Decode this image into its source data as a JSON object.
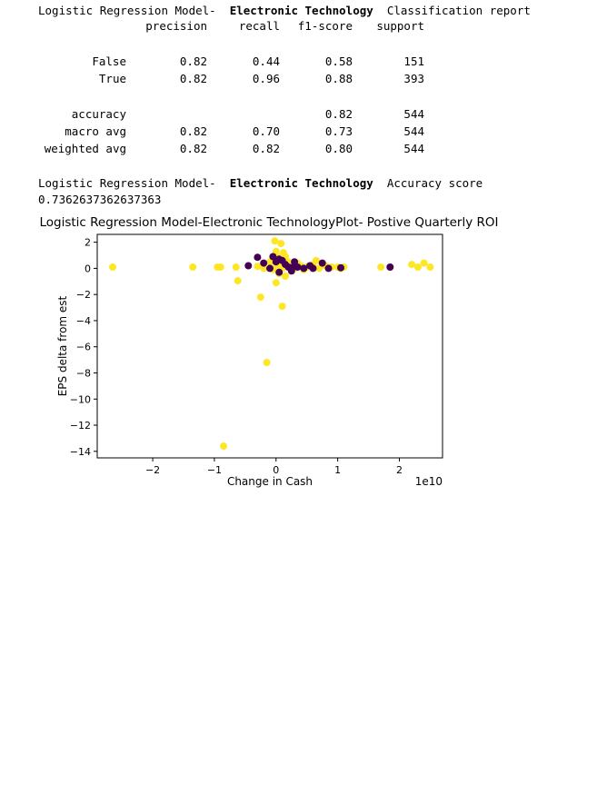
{
  "report": {
    "title_prefix": "Logistic Regression Model-",
    "title_bold": "Electronic Technology",
    "title_suffix": "Classification report",
    "headers": [
      "precision",
      "recall",
      "f1-score",
      "support"
    ],
    "rows": [
      {
        "label": "False",
        "precision": "0.82",
        "recall": "0.44",
        "f1": "0.58",
        "support": "151"
      },
      {
        "label": "True",
        "precision": "0.82",
        "recall": "0.96",
        "f1": "0.88",
        "support": "393"
      }
    ],
    "summary": [
      {
        "label": "accuracy",
        "precision": "",
        "recall": "",
        "f1": "0.82",
        "support": "544"
      },
      {
        "label": "macro avg",
        "precision": "0.82",
        "recall": "0.70",
        "f1": "0.73",
        "support": "544"
      },
      {
        "label": "weighted avg",
        "precision": "0.82",
        "recall": "0.82",
        "f1": "0.80",
        "support": "544"
      }
    ]
  },
  "accuracy": {
    "prefix": "Logistic Regression Model-",
    "bold": "Electronic Technology",
    "suffix": "Accuracy score",
    "value": "0.7362637362637363"
  },
  "chart_data": {
    "type": "scatter",
    "title": "Logistic Regression Model-Electronic TechnologyPlot- Postive Quarterly ROI",
    "xlabel": "Change in Cash",
    "ylabel": "EPS delta from est",
    "x_offset_label": "1e10",
    "xlim": [
      -2.9,
      2.7
    ],
    "ylim": [
      -14.5,
      2.6
    ],
    "xticks": [
      -2,
      -1,
      0,
      1,
      2
    ],
    "yticks": [
      2,
      0,
      -2,
      -4,
      -6,
      -8,
      -10,
      -12,
      -14
    ],
    "grid": false,
    "colors": {
      "class_0": "#440154",
      "class_1": "#fde725"
    },
    "series": [
      {
        "color": "#fde725",
        "points": [
          [
            -2.65,
            0.1
          ],
          [
            -1.35,
            0.1
          ],
          [
            -0.95,
            0.1
          ],
          [
            -0.9,
            0.1
          ],
          [
            -0.65,
            0.1
          ],
          [
            -0.62,
            -0.95
          ],
          [
            -0.3,
            0.15
          ],
          [
            -0.25,
            -2.2
          ],
          [
            -0.2,
            0.0
          ],
          [
            -0.15,
            -7.2
          ],
          [
            -0.1,
            0.5
          ],
          [
            -0.05,
            0.8
          ],
          [
            -0.05,
            -0.1
          ],
          [
            0.0,
            0.3
          ],
          [
            0.0,
            1.3
          ],
          [
            0.02,
            0.9
          ],
          [
            0.05,
            0.2
          ],
          [
            0.05,
            -0.4
          ],
          [
            0.08,
            1.9
          ],
          [
            0.1,
            0.0
          ],
          [
            0.12,
            1.2
          ],
          [
            0.15,
            -0.6
          ],
          [
            0.2,
            0.5
          ],
          [
            0.25,
            0.1
          ],
          [
            0.3,
            0.0
          ],
          [
            0.35,
            0.4
          ],
          [
            0.4,
            0.2
          ],
          [
            0.5,
            0.1
          ],
          [
            0.6,
            0.3
          ],
          [
            0.65,
            0.6
          ],
          [
            0.7,
            0.0
          ],
          [
            0.8,
            0.2
          ],
          [
            0.9,
            0.1
          ],
          [
            1.0,
            0.1
          ],
          [
            1.05,
            0.0
          ],
          [
            1.1,
            0.1
          ],
          [
            1.7,
            0.1
          ],
          [
            1.85,
            0.1
          ],
          [
            2.2,
            0.3
          ],
          [
            2.3,
            0.1
          ],
          [
            2.4,
            0.4
          ],
          [
            2.5,
            0.1
          ],
          [
            -0.02,
            2.1
          ],
          [
            0.0,
            -1.1
          ],
          [
            0.1,
            -2.9
          ],
          [
            -0.85,
            -13.6
          ],
          [
            0.15,
            0.9
          ],
          [
            0.45,
            -0.1
          ]
        ]
      },
      {
        "color": "#440154",
        "points": [
          [
            -0.45,
            0.2
          ],
          [
            -0.3,
            0.85
          ],
          [
            -0.2,
            0.4
          ],
          [
            -0.1,
            0.0
          ],
          [
            -0.05,
            0.9
          ],
          [
            0.0,
            0.5
          ],
          [
            0.05,
            0.7
          ],
          [
            0.1,
            0.6
          ],
          [
            0.15,
            0.3
          ],
          [
            0.2,
            0.1
          ],
          [
            0.25,
            -0.2
          ],
          [
            0.3,
            0.5
          ],
          [
            0.35,
            0.1
          ],
          [
            0.45,
            0.0
          ],
          [
            0.55,
            0.2
          ],
          [
            0.6,
            0.0
          ],
          [
            0.75,
            0.4
          ],
          [
            0.85,
            0.0
          ],
          [
            1.05,
            0.05
          ],
          [
            1.85,
            0.1
          ],
          [
            0.05,
            -0.3
          ],
          [
            0.3,
            0.2
          ]
        ]
      }
    ]
  }
}
